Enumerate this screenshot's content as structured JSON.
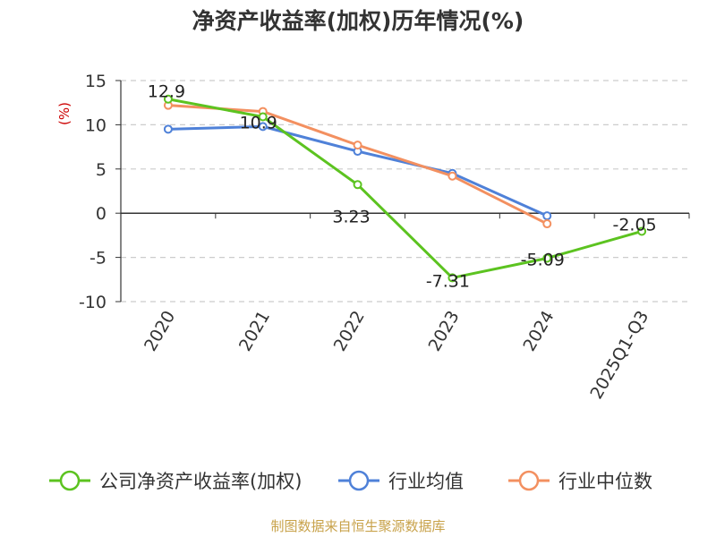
{
  "chart_data": {
    "type": "line",
    "title": "净资产收益率(加权)历年情况(%)",
    "unit_label": "(%)",
    "categories": [
      "2020",
      "2021",
      "2022",
      "2023",
      "2024",
      "2025Q1-Q3"
    ],
    "ylim": [
      -10,
      15
    ],
    "yticks": [
      15,
      10,
      5,
      0,
      -5,
      -10
    ],
    "grid": true,
    "legend_position": "bottom",
    "series": [
      {
        "name": "公司净资产收益率(加权)",
        "color": "#5cc320",
        "values": [
          12.9,
          10.9,
          3.23,
          -7.31,
          -5.09,
          -2.05
        ],
        "labels": [
          "12.9",
          "10.9",
          "3.23",
          "-7.31",
          "-5.09",
          "-2.05"
        ]
      },
      {
        "name": "行业均值",
        "color": "#4f81d8",
        "values": [
          9.5,
          9.8,
          7.0,
          4.5,
          -0.3,
          null
        ],
        "labels": []
      },
      {
        "name": "行业中位数",
        "color": "#f39060",
        "values": [
          12.2,
          11.5,
          7.7,
          4.2,
          -1.2,
          null
        ],
        "labels": []
      }
    ]
  },
  "footer": {
    "source": "制图数据来自恒生聚源数据库"
  }
}
